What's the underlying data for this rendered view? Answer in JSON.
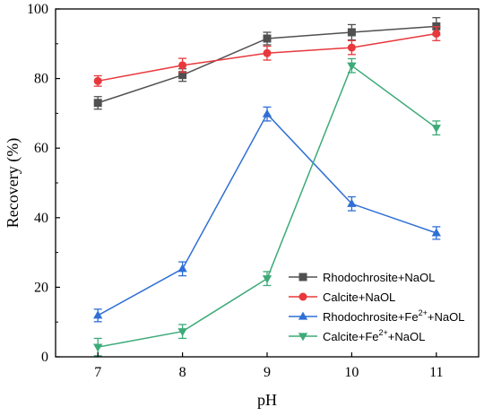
{
  "chart_data": {
    "type": "line",
    "xlabel": "pH",
    "ylabel": "Recovery (%)",
    "x": [
      7,
      8,
      9,
      10,
      11
    ],
    "xlim": [
      6.5,
      11.5
    ],
    "ylim": [
      0,
      100
    ],
    "xticks": [
      "7",
      "8",
      "9",
      "10",
      "11"
    ],
    "yticks": [
      "0",
      "20",
      "40",
      "60",
      "80",
      "100"
    ],
    "legend_position": "bottom-right",
    "series": [
      {
        "name": "Rhodochrosite+NaOL",
        "legend_main": "Rhodochrosite+NaOL",
        "legend_sup": "",
        "legend_tail": "",
        "marker": "square",
        "color": "#505050",
        "values": [
          73,
          81,
          91.5,
          93.3,
          95
        ],
        "errors": [
          1.8,
          1.8,
          1.8,
          2.2,
          2.5
        ]
      },
      {
        "name": "Calcite+NaOL",
        "legend_main": "Calcite+NaOL",
        "legend_sup": "",
        "legend_tail": "",
        "marker": "circle",
        "color": "#e8383c",
        "values": [
          79.3,
          83.8,
          87.3,
          88.9,
          92.9
        ],
        "errors": [
          1.5,
          2.0,
          2.0,
          2.0,
          2.0
        ]
      },
      {
        "name": "Rhodochrosite+Fe2++NaOL",
        "legend_main": "Rhodochrosite+Fe",
        "legend_sup": "2+",
        "legend_tail": "+NaOL",
        "marker": "triangle-up",
        "color": "#2f6fd6",
        "values": [
          11.9,
          25.3,
          69.8,
          44,
          35.6
        ],
        "errors": [
          1.8,
          2.0,
          2.0,
          2.0,
          1.8
        ]
      },
      {
        "name": "Calcite+Fe2++NaOL",
        "legend_main": "Calcite+Fe",
        "legend_sup": "2+",
        "legend_tail": "+NaOL",
        "marker": "triangle-down",
        "color": "#3daa78",
        "values": [
          2.8,
          7.3,
          22.5,
          83.7,
          65.8
        ],
        "errors": [
          2.5,
          2.0,
          2.0,
          2.0,
          2.0
        ]
      }
    ]
  }
}
